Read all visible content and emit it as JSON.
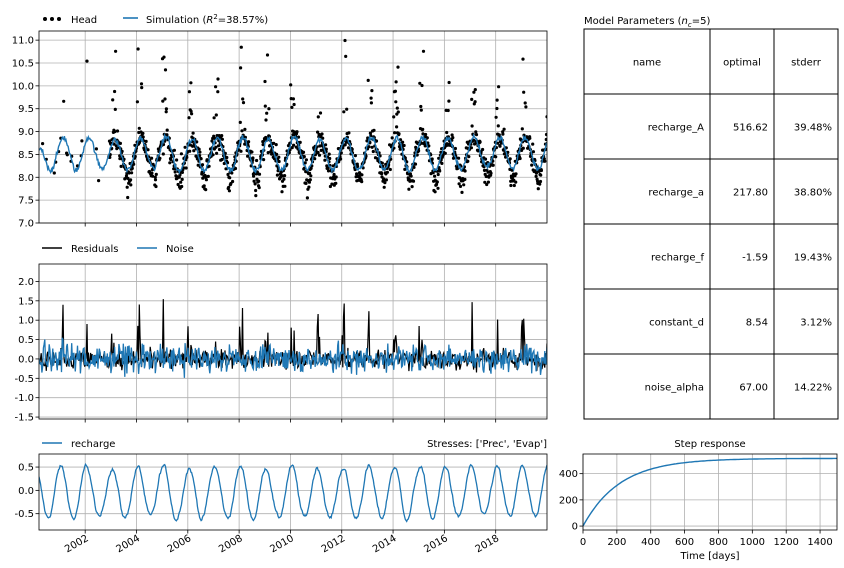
{
  "chart_data": [
    {
      "id": "head",
      "type": "scatter+line",
      "x_range": [
        2000.2,
        2020.0
      ],
      "ylim": [
        7.0,
        11.2
      ],
      "yticks": [
        7.0,
        7.5,
        8.0,
        8.5,
        9.0,
        9.5,
        10.0,
        10.5,
        11.0
      ],
      "ytick_labels": [
        "7.0",
        "7.5",
        "8.0",
        "8.5",
        "9.0",
        "9.5",
        "10.0",
        "10.5",
        "11.0"
      ],
      "legend": [
        {
          "label": "Head",
          "style": "dots",
          "color": "#000000"
        },
        {
          "label": "Simulation (",
          "label_math": "R",
          "label_sup": "2",
          "label_rest": "=38.57%)",
          "style": "line",
          "color": "#1f77b4"
        }
      ],
      "grid": true,
      "series_note": "Observed heads (black dots) and simulated heads (blue line), ~8.0–9.2 m baseline with peaks up to ~11.2"
    },
    {
      "id": "residuals",
      "type": "line",
      "ylim": [
        -1.55,
        2.45
      ],
      "yticks": [
        -1.5,
        -1.0,
        -0.5,
        0.0,
        0.5,
        1.0,
        1.5,
        2.0
      ],
      "ytick_labels": [
        "-1.5",
        "-1.0",
        "-0.5",
        "0.0",
        "0.5",
        "1.0",
        "1.5",
        "2.0"
      ],
      "legend": [
        {
          "label": "Residuals",
          "color": "#000000"
        },
        {
          "label": "Noise",
          "color": "#1f77b4"
        }
      ],
      "grid": true
    },
    {
      "id": "recharge",
      "type": "line",
      "ylim": [
        -0.85,
        0.78
      ],
      "yticks": [
        -0.5,
        0.0,
        0.5
      ],
      "ytick_labels": [
        "-0.5",
        "0.0",
        "0.5"
      ],
      "legend": [
        {
          "label": "recharge",
          "color": "#1f77b4"
        }
      ],
      "annotation": "Stresses: ['Prec', 'Evap']",
      "xticks": [
        2002,
        2004,
        2006,
        2008,
        2010,
        2012,
        2014,
        2016,
        2018
      ],
      "xtick_labels": [
        "2002",
        "2004",
        "2006",
        "2008",
        "2010",
        "2012",
        "2014",
        "2016",
        "2018"
      ],
      "grid": true
    },
    {
      "id": "step",
      "type": "line",
      "title": "Step response",
      "xlabel": "Time [days]",
      "xlim": [
        0,
        1500
      ],
      "ylim": [
        -30,
        550
      ],
      "xticks": [
        0,
        200,
        400,
        600,
        800,
        1000,
        1200,
        1400
      ],
      "xtick_labels": [
        "0",
        "200",
        "400",
        "600",
        "800",
        "1000",
        "1200",
        "1400"
      ],
      "yticks": [
        0,
        200,
        400
      ],
      "ytick_labels": [
        "0",
        "200",
        "400"
      ],
      "A": 516.62,
      "a": 217.8,
      "color": "#1f77b4",
      "grid": true
    }
  ],
  "table": {
    "title_prefix": "Model Parameters (",
    "title_n": "n",
    "title_sub": "c",
    "title_suffix": "=5)",
    "headers": [
      "name",
      "optimal",
      "stderr"
    ],
    "rows": [
      [
        "recharge_A",
        "516.62",
        "39.48%"
      ],
      [
        "recharge_a",
        "217.80",
        "38.80%"
      ],
      [
        "recharge_f",
        "-1.59",
        "19.43%"
      ],
      [
        "constant_d",
        "8.54",
        "3.12%"
      ],
      [
        "noise_alpha",
        "67.00",
        "14.22%"
      ]
    ]
  }
}
